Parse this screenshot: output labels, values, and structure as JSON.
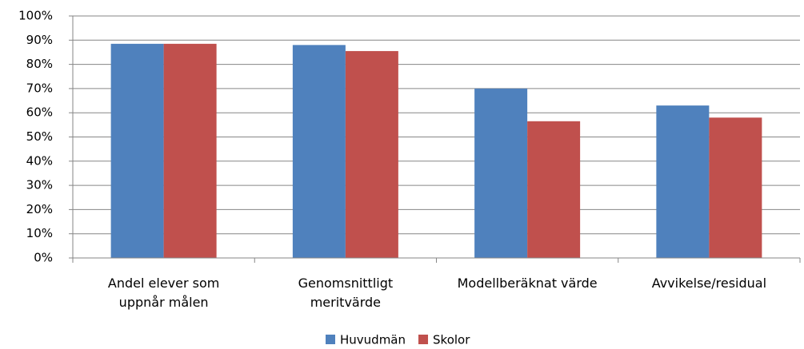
{
  "chart_data": {
    "type": "bar",
    "categories": [
      "Andel elever som uppnår målen",
      "Genomsnittligt meritvärde",
      "Modellberäknat värde",
      "Avvikelse/residual"
    ],
    "series": [
      {
        "name": "Huvudmän",
        "color": "#4f81bd",
        "values": [
          88.5,
          88,
          70,
          63
        ]
      },
      {
        "name": "Skolor",
        "color": "#c0504d",
        "values": [
          88.5,
          85.5,
          56.5,
          58
        ]
      }
    ],
    "ylim": [
      0,
      100
    ],
    "yticks": [
      {
        "value": 0,
        "label": "0%"
      },
      {
        "value": 10,
        "label": "10%"
      },
      {
        "value": 20,
        "label": "20%"
      },
      {
        "value": 30,
        "label": "30%"
      },
      {
        "value": 40,
        "label": "40%"
      },
      {
        "value": 50,
        "label": "50%"
      },
      {
        "value": 60,
        "label": "60%"
      },
      {
        "value": 70,
        "label": "70%"
      },
      {
        "value": 80,
        "label": "80%"
      },
      {
        "value": 90,
        "label": "90%"
      },
      {
        "value": 100,
        "label": "100%"
      }
    ],
    "grid": true,
    "legend": "bottom"
  }
}
